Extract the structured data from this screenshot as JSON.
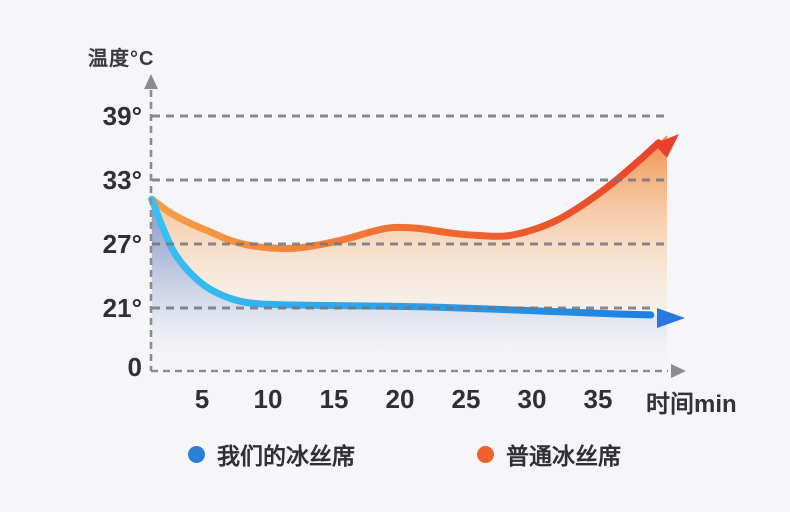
{
  "colors": {
    "background": "#f6f6f8",
    "grid": "#74747d",
    "axis": "#8b8b93",
    "text": "#2f2f35",
    "blue_legend": "#2b7fd9",
    "orange_legend": "#f0622c"
  },
  "chart_data": {
    "type": "area",
    "title": "",
    "ylabel": "温度°C",
    "xlabel": "时间min",
    "x_unit": "min",
    "y_unit": "°C",
    "grid": "dashed-horizontal",
    "legend_position": "bottom",
    "x_ticks": [
      5,
      10,
      15,
      20,
      25,
      30,
      35
    ],
    "y_ticks": [
      {
        "label": "39°",
        "value": 39
      },
      {
        "label": "33°",
        "value": 33
      },
      {
        "label": "27°",
        "value": 27
      },
      {
        "label": "21°",
        "value": 21
      },
      {
        "label": "0",
        "value": 0
      }
    ],
    "xlim": [
      0,
      40
    ],
    "ylim_shown": [
      0,
      39
    ],
    "series": [
      {
        "name": "我们的冰丝席",
        "legend_color": "#2b7fd9",
        "line_colors": [
          "#38c0f2",
          "#1b7fe2"
        ],
        "arrow_color": "#2878e0",
        "points": [
          [
            1.2,
            31.2
          ],
          [
            2.0,
            28.6
          ],
          [
            3.0,
            26.0
          ],
          [
            4.5,
            23.8
          ],
          [
            6.0,
            22.5
          ],
          [
            8.0,
            21.6
          ],
          [
            10.0,
            21.35
          ],
          [
            13.0,
            21.25
          ],
          [
            17.0,
            21.2
          ],
          [
            22.0,
            21.1
          ],
          [
            27.0,
            20.9
          ],
          [
            31.0,
            20.7
          ],
          [
            35.0,
            20.5
          ],
          [
            39.0,
            20.35
          ]
        ]
      },
      {
        "name": "普通冰丝席",
        "legend_color": "#f0622c",
        "line_colors": [
          "#f5a049",
          "#ef6a2e",
          "#e8432a"
        ],
        "arrow_color": "#e8432a",
        "points": [
          [
            1.2,
            31.2
          ],
          [
            2.5,
            30.0
          ],
          [
            4.0,
            29.0
          ],
          [
            5.5,
            28.2
          ],
          [
            7.0,
            27.4
          ],
          [
            8.5,
            26.9
          ],
          [
            10.0,
            26.65
          ],
          [
            12.0,
            26.6
          ],
          [
            14.0,
            26.95
          ],
          [
            16.0,
            27.5
          ],
          [
            18.0,
            28.2
          ],
          [
            19.5,
            28.55
          ],
          [
            21.5,
            28.45
          ],
          [
            24.0,
            28.0
          ],
          [
            26.0,
            27.8
          ],
          [
            28.0,
            27.75
          ],
          [
            30.0,
            28.3
          ],
          [
            32.0,
            29.3
          ],
          [
            34.0,
            30.8
          ],
          [
            36.0,
            32.6
          ],
          [
            38.0,
            34.7
          ],
          [
            39.6,
            36.5
          ]
        ]
      }
    ]
  }
}
